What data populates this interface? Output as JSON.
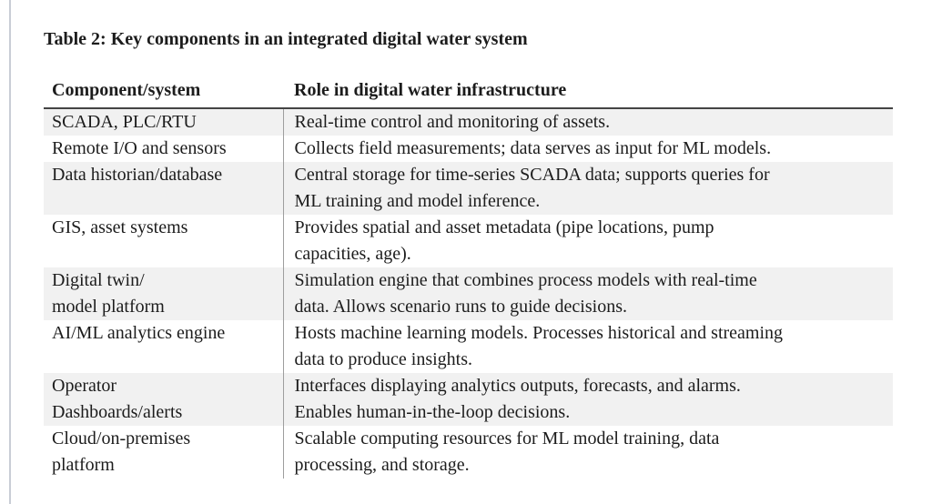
{
  "document": {
    "title": "Table 2: Key components in an integrated digital water system"
  },
  "table": {
    "headers": [
      "Component/system",
      "Role in digital water infrastructure"
    ],
    "rows": [
      {
        "shaded": true,
        "component": [
          "SCADA, PLC/RTU"
        ],
        "role": [
          "Real-time control and monitoring of assets."
        ]
      },
      {
        "shaded": false,
        "component": [
          "Remote I/O and sensors"
        ],
        "role": [
          "Collects field measurements; data serves as input for ML models."
        ]
      },
      {
        "shaded": true,
        "component": [
          "Data historian/database"
        ],
        "role": [
          "Central storage for time-series SCADA data; supports queries for",
          "ML training and model inference."
        ]
      },
      {
        "shaded": false,
        "component": [
          "GIS, asset systems"
        ],
        "role": [
          "Provides spatial and asset metadata (pipe locations, pump",
          "capacities, age)."
        ]
      },
      {
        "shaded": true,
        "component": [
          "Digital twin/",
          "model platform"
        ],
        "role": [
          "Simulation engine that combines process models with real-time",
          "data. Allows scenario runs to guide decisions."
        ]
      },
      {
        "shaded": false,
        "component": [
          "AI/ML analytics engine"
        ],
        "role": [
          "Hosts machine learning models. Processes historical and streaming",
          "data to produce insights."
        ]
      },
      {
        "shaded": true,
        "component": [
          "Operator",
          "Dashboards/alerts"
        ],
        "role": [
          "Interfaces displaying analytics outputs, forecasts, and alarms.",
          "Enables human-in-the-loop decisions."
        ]
      },
      {
        "shaded": false,
        "component": [
          "Cloud/on-premises",
          "platform"
        ],
        "role": [
          "Scalable computing resources for ML model training, data",
          "processing, and storage."
        ]
      }
    ]
  },
  "colors": {
    "row_shading": "#f1f1f1",
    "header_rule": "#444444",
    "column_divider": "#9e9e9e",
    "page_edge_line": "#c9cdd6",
    "text": "#1c1c1c"
  }
}
